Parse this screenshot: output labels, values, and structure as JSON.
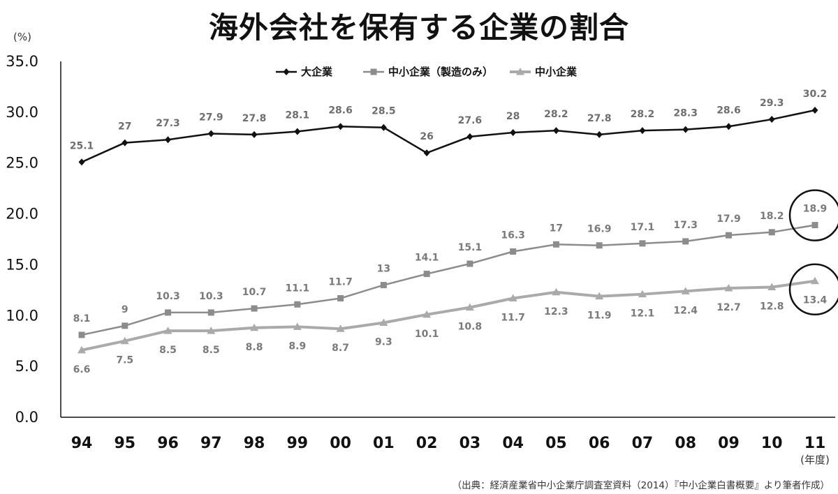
{
  "title": "海外会社を保有する企業の割合",
  "source": "（出典：経済産業省中小企業庁調査室資料（2014）『中小企業白書概要』より筆者作成）",
  "chart_data": {
    "type": "line",
    "title": "海外会社を保有する企業の割合",
    "ylabel": "(%)",
    "xlabel": "(年度)",
    "ylim": [
      0,
      35
    ],
    "yticks": [
      "0.0",
      "5.0",
      "10.0",
      "15.0",
      "20.0",
      "25.0",
      "30.0",
      "35.0"
    ],
    "categories": [
      "94",
      "95",
      "96",
      "97",
      "98",
      "99",
      "00",
      "01",
      "02",
      "03",
      "04",
      "05",
      "06",
      "07",
      "08",
      "09",
      "10",
      "11"
    ],
    "legend_position": "top",
    "grid": false,
    "series": [
      {
        "name": "大企業",
        "color": "#111111",
        "marker": "diamond",
        "label_position": "above",
        "values": [
          25.1,
          27,
          27.3,
          27.9,
          27.8,
          28.1,
          28.6,
          28.5,
          26,
          27.6,
          28,
          28.2,
          27.8,
          28.2,
          28.3,
          28.6,
          29.3,
          30.2
        ],
        "labels": [
          "25.1",
          "27",
          "27.3",
          "27.9",
          "27.8",
          "28.1",
          "28.6",
          "28.5",
          "26",
          "27.6",
          "28",
          "28.2",
          "27.8",
          "28.2",
          "28.3",
          "28.6",
          "29.3",
          "30.2"
        ]
      },
      {
        "name": "中小企業（製造のみ）",
        "color": "#8c8c8c",
        "marker": "square",
        "label_position": "above",
        "values": [
          8.1,
          9,
          10.3,
          10.3,
          10.7,
          11.1,
          11.7,
          13,
          14.1,
          15.1,
          16.3,
          17,
          16.9,
          17.1,
          17.3,
          17.9,
          18.2,
          18.9
        ],
        "labels": [
          "8.1",
          "9",
          "10.3",
          "10.3",
          "10.7",
          "11.1",
          "11.7",
          "13",
          "14.1",
          "15.1",
          "16.3",
          "17",
          "16.9",
          "17.1",
          "17.3",
          "17.9",
          "18.2",
          "18.9"
        ]
      },
      {
        "name": "中小企業",
        "color": "#aaaaaa",
        "marker": "triangle",
        "label_position": "below",
        "values": [
          6.6,
          7.5,
          8.5,
          8.5,
          8.8,
          8.9,
          8.7,
          9.3,
          10.1,
          10.8,
          11.7,
          12.3,
          11.9,
          12.1,
          12.4,
          12.7,
          12.8,
          13.4
        ],
        "labels": [
          "6.6",
          "7.5",
          "8.5",
          "8.5",
          "8.8",
          "8.9",
          "8.7",
          "9.3",
          "10.1",
          "10.8",
          "11.7",
          "12.3",
          "11.9",
          "12.1",
          "12.4",
          "12.7",
          "12.8",
          "13.4"
        ]
      }
    ],
    "annotations": [
      {
        "type": "circle",
        "series": "中小企業（製造のみ）",
        "category": "11"
      },
      {
        "type": "circle",
        "series": "中小企業",
        "category": "11"
      }
    ]
  }
}
